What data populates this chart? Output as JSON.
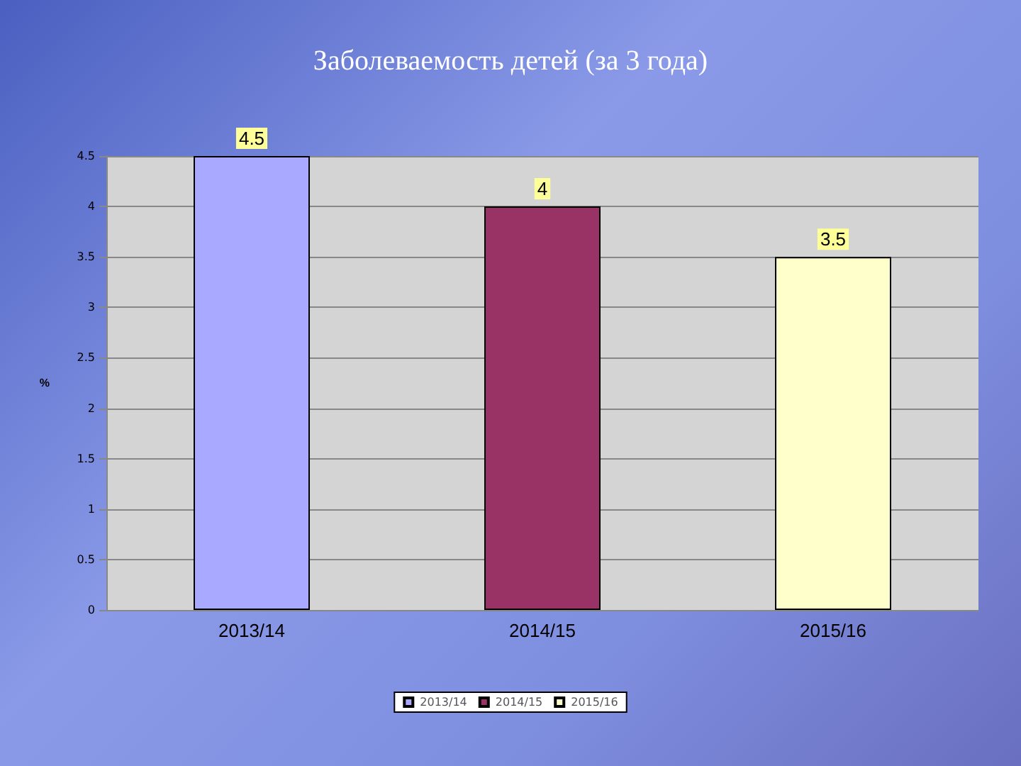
{
  "chart_data": {
    "type": "bar",
    "title": "Заболеваемость детей (за 3 года)",
    "ylabel": "%",
    "categories": [
      "2013/14",
      "2014/15",
      "2015/16"
    ],
    "series": [
      {
        "name": "2013/14",
        "color": "#a9a9ff",
        "values": [
          4.5,
          null,
          null
        ]
      },
      {
        "name": "2014/15",
        "color": "#993366",
        "values": [
          null,
          4,
          null
        ]
      },
      {
        "name": "2015/16",
        "color": "#ffffcc",
        "values": [
          null,
          null,
          3.5
        ]
      }
    ],
    "ylim": [
      0,
      4.5
    ],
    "yticks": [
      0,
      0.5,
      1,
      1.5,
      2,
      2.5,
      3,
      3.5,
      4,
      4.5
    ],
    "grid": "y",
    "legend": "bottom",
    "data_labels": true
  }
}
